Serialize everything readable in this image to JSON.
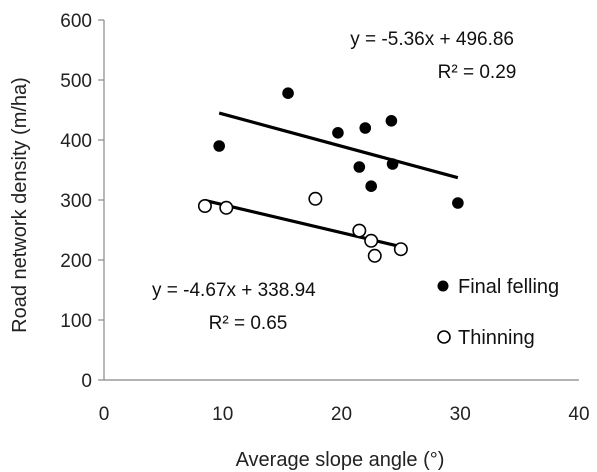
{
  "chart_data": {
    "type": "scatter",
    "xlabel": "Average slope angle (°)",
    "ylabel": "Road network density (m/ha)",
    "xlim": [
      0,
      40
    ],
    "ylim": [
      0,
      600
    ],
    "x_ticks": [
      0,
      10,
      20,
      30,
      40
    ],
    "y_ticks": [
      0,
      100,
      200,
      300,
      400,
      500,
      600
    ],
    "grid": false,
    "legend_position": "bottom-right",
    "series": [
      {
        "name": "Final felling",
        "marker": "filled-circle",
        "color": "#000000",
        "points": [
          {
            "x": 9.7,
            "y": 390
          },
          {
            "x": 15.5,
            "y": 478
          },
          {
            "x": 19.7,
            "y": 412
          },
          {
            "x": 21.5,
            "y": 355
          },
          {
            "x": 22.0,
            "y": 420
          },
          {
            "x": 22.5,
            "y": 323
          },
          {
            "x": 24.2,
            "y": 432
          },
          {
            "x": 24.3,
            "y": 360
          },
          {
            "x": 29.8,
            "y": 295
          }
        ],
        "trendline": {
          "slope": -5.36,
          "intercept": 496.86,
          "x_range": [
            9.7,
            29.8
          ],
          "equation": "y = -5.36x + 496.86",
          "r2": "R² = 0.29"
        }
      },
      {
        "name": "Thinning",
        "marker": "open-circle",
        "color": "#000000",
        "points": [
          {
            "x": 8.5,
            "y": 290
          },
          {
            "x": 10.3,
            "y": 287
          },
          {
            "x": 17.8,
            "y": 302
          },
          {
            "x": 21.5,
            "y": 249
          },
          {
            "x": 22.5,
            "y": 232
          },
          {
            "x": 22.8,
            "y": 207
          },
          {
            "x": 25.0,
            "y": 218
          }
        ],
        "trendline": {
          "slope": -4.67,
          "intercept": 338.94,
          "x_range": [
            8.5,
            25.0
          ],
          "equation": "y = -4.67x + 338.94",
          "r2": "R² = 0.65"
        }
      }
    ]
  }
}
